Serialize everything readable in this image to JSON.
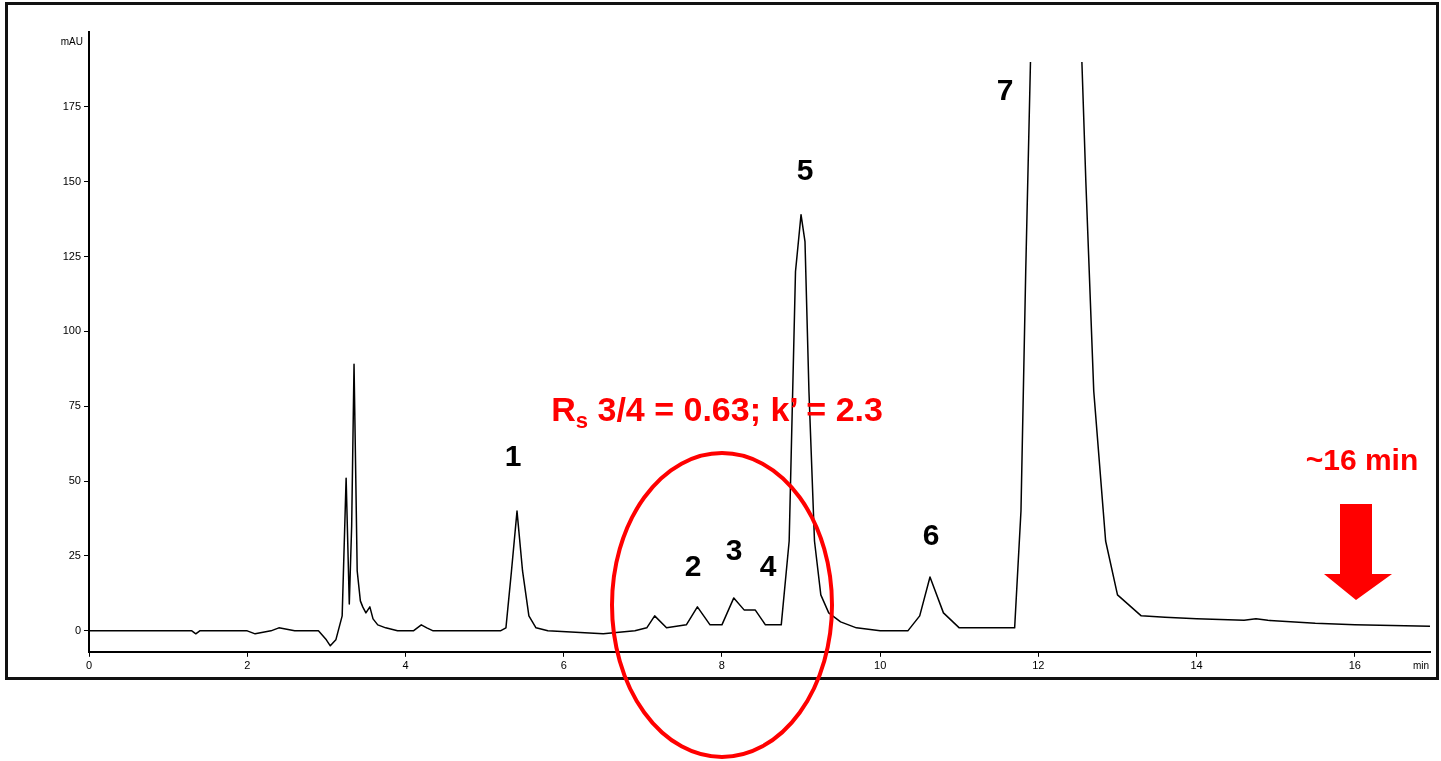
{
  "chart_data": {
    "type": "line",
    "xlabel": "min",
    "ylabel": "mAU",
    "xlim": [
      0,
      16.95
    ],
    "xticks": [
      0,
      2,
      4,
      6,
      8,
      10,
      12,
      14,
      16
    ],
    "ylim": [
      -7,
      200
    ],
    "yticks": [
      0,
      25,
      50,
      75,
      100,
      125,
      150,
      175
    ],
    "series": [
      {
        "color": "#000000",
        "x": [
          0,
          1.3,
          1.35,
          1.4,
          2.0,
          2.1,
          2.3,
          2.4,
          2.6,
          2.9,
          3.0,
          3.05,
          3.12,
          3.2,
          3.25,
          3.29,
          3.32,
          3.35,
          3.39,
          3.43,
          3.46,
          3.5,
          3.55,
          3.59,
          3.65,
          3.75,
          3.9,
          4.1,
          4.2,
          4.27,
          4.35,
          4.5,
          5.2,
          5.27,
          5.34,
          5.41,
          5.48,
          5.56,
          5.65,
          5.8,
          6.5,
          6.9,
          7.05,
          7.15,
          7.3,
          7.55,
          7.69,
          7.85,
          8.0,
          8.15,
          8.28,
          8.32,
          8.42,
          8.55,
          8.75,
          8.85,
          8.93,
          9.0,
          9.05,
          9.1,
          9.17,
          9.25,
          9.35,
          9.5,
          9.7,
          10.0,
          10.35,
          10.5,
          10.63,
          10.8,
          11.0,
          11.5,
          11.7,
          11.78,
          11.84,
          11.9,
          12.2,
          12.55,
          12.6,
          12.7,
          12.85,
          13.0,
          13.3,
          13.6,
          14.0,
          14.6,
          14.75,
          14.9,
          15.5,
          16.0,
          16.95
        ],
        "values": [
          0,
          0,
          -1,
          0,
          0,
          -1,
          0,
          1,
          0,
          0,
          -3,
          -5,
          -3,
          5,
          51,
          9,
          35,
          89,
          20,
          10,
          8,
          6,
          8,
          4,
          2,
          1,
          0,
          0,
          2,
          1,
          0,
          0,
          0,
          1,
          20,
          40,
          20,
          5,
          1,
          0,
          -1,
          0,
          1,
          5,
          1,
          2,
          8,
          2,
          2,
          11,
          7,
          7,
          7,
          2,
          2,
          30,
          120,
          139,
          130,
          80,
          30,
          12,
          6,
          3,
          1,
          0,
          0,
          5,
          18,
          6,
          1,
          1,
          1,
          40,
          120,
          190,
          null,
          190,
          150,
          80,
          30,
          12,
          5,
          4.5,
          4,
          3.5,
          4,
          3.5,
          2.5,
          2,
          1.5
        ]
      }
    ],
    "annotations": [
      "1",
      "2",
      "3",
      "4",
      "5",
      "6",
      "7",
      "R$_{s}$ 3/4 = 0.63; k’ = 2.3",
      "~16 min"
    ]
  }
}
